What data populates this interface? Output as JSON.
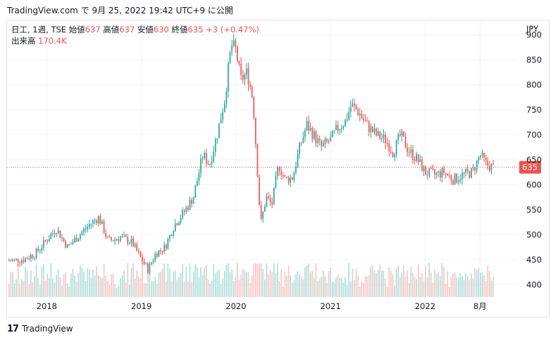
{
  "header": {
    "snapshot_text": "TradingView.com で 9月 25, 2022 19:42 UTC+9 に公開"
  },
  "legend": {
    "symbol": "日工, 1週, TSE",
    "open_label": "始値",
    "open_value": "637",
    "high_label": "高値",
    "high_value": "637",
    "low_label": "安値",
    "low_value": "630",
    "close_label": "終値",
    "close_value": "635",
    "change": "+3 (+0.47%)",
    "volume_label": "出来高",
    "volume_value": "170.4K"
  },
  "footer": {
    "brand": "TradingView",
    "logo": "17"
  },
  "colors": {
    "up": "#26a69a",
    "down": "#ef5350",
    "grid": "#f0f3fa",
    "text": "#131722",
    "price_line": "#ef5350",
    "volume_up": "#b2dfdb",
    "volume_down": "#f7c7c6"
  },
  "chart_data": {
    "type": "candlestick",
    "currency_label": "JPY",
    "last_price_label": "635",
    "last_price": 635,
    "ylim": [
      375,
      925
    ],
    "yticks": [
      400,
      450,
      500,
      550,
      600,
      650,
      700,
      750,
      800,
      850,
      900
    ],
    "xticks": [
      {
        "label": "2018",
        "x": 2018.0
      },
      {
        "label": "2019",
        "x": 2019.0
      },
      {
        "label": "2020",
        "x": 2020.0
      },
      {
        "label": "2021",
        "x": 2021.0
      },
      {
        "label": "2022",
        "x": 2022.0
      },
      {
        "label": "8月",
        "x": 2022.58
      }
    ],
    "xlim": [
      2017.58,
      2022.98
    ],
    "close_series": [
      {
        "t": 2017.6,
        "close": 448
      },
      {
        "t": 2017.75,
        "close": 450
      },
      {
        "t": 2017.88,
        "close": 462
      },
      {
        "t": 2018.0,
        "close": 490
      },
      {
        "t": 2018.1,
        "close": 512
      },
      {
        "t": 2018.22,
        "close": 475
      },
      {
        "t": 2018.35,
        "close": 500
      },
      {
        "t": 2018.45,
        "close": 520
      },
      {
        "t": 2018.55,
        "close": 535
      },
      {
        "t": 2018.65,
        "close": 487
      },
      {
        "t": 2018.78,
        "close": 495
      },
      {
        "t": 2018.9,
        "close": 485
      },
      {
        "t": 2018.97,
        "close": 460
      },
      {
        "t": 2019.07,
        "close": 430
      },
      {
        "t": 2019.15,
        "close": 462
      },
      {
        "t": 2019.25,
        "close": 475
      },
      {
        "t": 2019.35,
        "close": 520
      },
      {
        "t": 2019.45,
        "close": 545
      },
      {
        "t": 2019.55,
        "close": 575
      },
      {
        "t": 2019.65,
        "close": 660
      },
      {
        "t": 2019.72,
        "close": 640
      },
      {
        "t": 2019.8,
        "close": 700
      },
      {
        "t": 2019.88,
        "close": 770
      },
      {
        "t": 2019.95,
        "close": 880
      },
      {
        "t": 2020.0,
        "close": 870
      },
      {
        "t": 2020.05,
        "close": 810
      },
      {
        "t": 2020.12,
        "close": 825
      },
      {
        "t": 2020.18,
        "close": 770
      },
      {
        "t": 2020.22,
        "close": 650
      },
      {
        "t": 2020.26,
        "close": 520
      },
      {
        "t": 2020.32,
        "close": 575
      },
      {
        "t": 2020.38,
        "close": 560
      },
      {
        "t": 2020.45,
        "close": 640
      },
      {
        "t": 2020.52,
        "close": 610
      },
      {
        "t": 2020.6,
        "close": 615
      },
      {
        "t": 2020.68,
        "close": 680
      },
      {
        "t": 2020.75,
        "close": 720
      },
      {
        "t": 2020.82,
        "close": 700
      },
      {
        "t": 2020.9,
        "close": 675
      },
      {
        "t": 2021.0,
        "close": 690
      },
      {
        "t": 2021.08,
        "close": 715
      },
      {
        "t": 2021.15,
        "close": 725
      },
      {
        "t": 2021.22,
        "close": 760
      },
      {
        "t": 2021.3,
        "close": 745
      },
      {
        "t": 2021.38,
        "close": 720
      },
      {
        "t": 2021.48,
        "close": 700
      },
      {
        "t": 2021.58,
        "close": 690
      },
      {
        "t": 2021.66,
        "close": 665
      },
      {
        "t": 2021.74,
        "close": 700
      },
      {
        "t": 2021.82,
        "close": 670
      },
      {
        "t": 2021.92,
        "close": 650
      },
      {
        "t": 2022.0,
        "close": 625
      },
      {
        "t": 2022.1,
        "close": 620
      },
      {
        "t": 2022.2,
        "close": 625
      },
      {
        "t": 2022.3,
        "close": 610
      },
      {
        "t": 2022.4,
        "close": 620
      },
      {
        "t": 2022.5,
        "close": 625
      },
      {
        "t": 2022.58,
        "close": 660
      },
      {
        "t": 2022.65,
        "close": 640
      },
      {
        "t": 2022.72,
        "close": 635
      }
    ]
  }
}
